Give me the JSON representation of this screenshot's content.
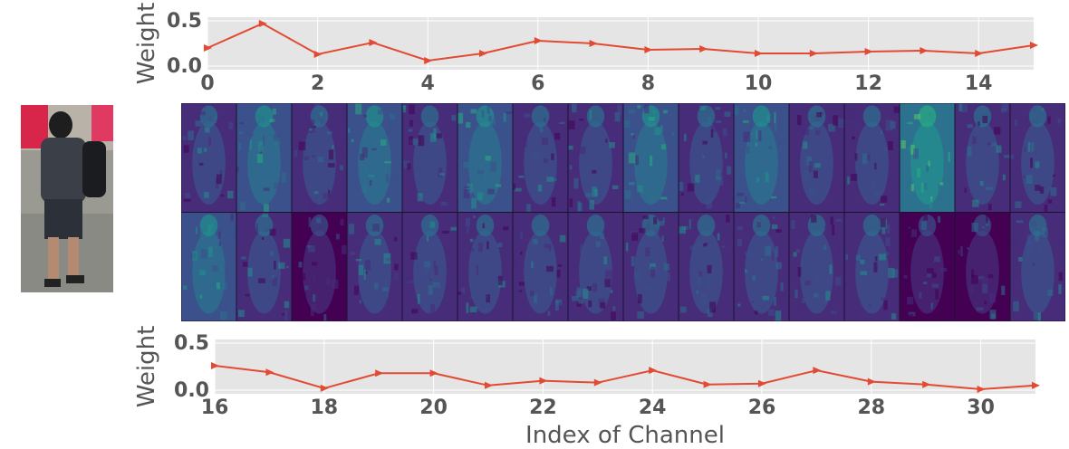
{
  "figure": {
    "xlabel": "Index of Channel"
  },
  "feature_map_grid": {
    "rows": 2,
    "cols": 16,
    "colormap": "viridis"
  },
  "colors": {
    "line": "#E24A33",
    "panel_bg": "#E5E5E5",
    "grid": "#FFFFFF",
    "tick_text": "#555555"
  },
  "chart_data": [
    {
      "type": "line",
      "title": "",
      "xlabel": "",
      "ylabel": "Weight",
      "xlim": [
        0,
        15
      ],
      "ylim": [
        0,
        0.5
      ],
      "xticks": [
        "0",
        "2",
        "4",
        "6",
        "8",
        "10",
        "12",
        "14"
      ],
      "yticks": [
        "0.0",
        "0.5"
      ],
      "grid": true,
      "series": [
        {
          "x": [
            0,
            1,
            2,
            3,
            4,
            5,
            6,
            7,
            8,
            9,
            10,
            11,
            12,
            13,
            14,
            15
          ],
          "y": [
            0.2,
            0.47,
            0.13,
            0.26,
            0.06,
            0.14,
            0.28,
            0.25,
            0.18,
            0.19,
            0.14,
            0.14,
            0.16,
            0.17,
            0.14,
            0.23
          ]
        }
      ]
    },
    {
      "type": "line",
      "title": "",
      "xlabel": "Index of Channel",
      "ylabel": "Weight",
      "xlim": [
        16,
        31
      ],
      "ylim": [
        0,
        0.5
      ],
      "xticks": [
        "16",
        "18",
        "20",
        "22",
        "24",
        "26",
        "28",
        "30"
      ],
      "yticks": [
        "0.0",
        "0.5"
      ],
      "grid": true,
      "series": [
        {
          "x": [
            16,
            17,
            18,
            19,
            20,
            21,
            22,
            23,
            24,
            25,
            26,
            27,
            28,
            29,
            30,
            31
          ],
          "y": [
            0.26,
            0.19,
            0.02,
            0.18,
            0.18,
            0.05,
            0.1,
            0.08,
            0.21,
            0.06,
            0.07,
            0.21,
            0.09,
            0.06,
            0.01,
            0.05
          ]
        }
      ]
    }
  ]
}
